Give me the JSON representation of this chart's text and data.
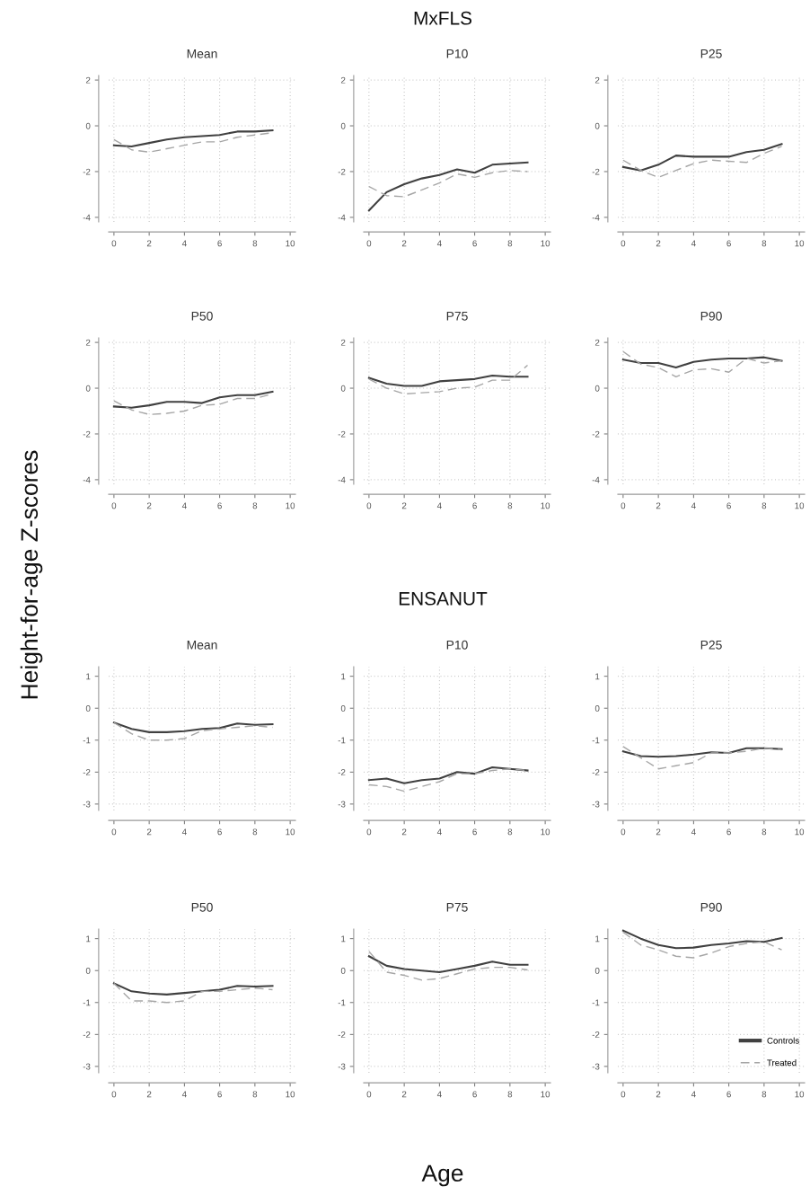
{
  "chart_data": [
    {
      "type": "line",
      "title": "Mean",
      "annotations": [
        "MxFLS",
        "Height-for-age Z-scores",
        "Age"
      ],
      "x": [
        0,
        1,
        2,
        3,
        4,
        5,
        6,
        7,
        8,
        9
      ],
      "xlim": [
        -0.3,
        10.3
      ],
      "xticks": [
        0,
        2,
        4,
        6,
        8,
        10
      ],
      "ylim": [
        -4.2,
        2.2
      ],
      "yticks": [
        -4,
        -2,
        0,
        2
      ],
      "grid": true,
      "series": [
        {
          "color": "#404040",
          "line_style": "solid",
          "values": [
            -0.85,
            -0.9,
            -0.75,
            -0.6,
            -0.5,
            -0.45,
            -0.4,
            -0.25,
            -0.25,
            -0.2
          ]
        },
        {
          "color": "#a6a6a6",
          "line_style": "dashed",
          "values": [
            -0.6,
            -1.05,
            -1.15,
            -1.0,
            -0.85,
            -0.7,
            -0.7,
            -0.5,
            -0.4,
            -0.3
          ]
        }
      ]
    },
    {
      "type": "line",
      "title": "P10",
      "x": [
        0,
        1,
        2,
        3,
        4,
        5,
        6,
        7,
        8,
        9
      ],
      "xlim": [
        -0.3,
        10.3
      ],
      "xticks": [
        0,
        2,
        4,
        6,
        8,
        10
      ],
      "ylim": [
        -4.2,
        2.2
      ],
      "yticks": [
        -4,
        -2,
        0,
        2
      ],
      "grid": true,
      "series": [
        {
          "color": "#404040",
          "line_style": "solid",
          "values": [
            -3.7,
            -2.9,
            -2.55,
            -2.3,
            -2.15,
            -1.9,
            -2.05,
            -1.7,
            -1.65,
            -1.6
          ]
        },
        {
          "color": "#a6a6a6",
          "line_style": "dashed",
          "values": [
            -2.65,
            -3.05,
            -3.1,
            -2.8,
            -2.5,
            -2.1,
            -2.25,
            -2.05,
            -1.95,
            -2.0
          ]
        }
      ]
    },
    {
      "type": "line",
      "title": "P25",
      "x": [
        0,
        1,
        2,
        3,
        4,
        5,
        6,
        7,
        8,
        9
      ],
      "xlim": [
        -0.3,
        10.3
      ],
      "xticks": [
        0,
        2,
        4,
        6,
        8,
        10
      ],
      "ylim": [
        -4.2,
        2.2
      ],
      "yticks": [
        -4,
        -2,
        0,
        2
      ],
      "grid": true,
      "series": [
        {
          "color": "#404040",
          "line_style": "solid",
          "values": [
            -1.8,
            -1.95,
            -1.7,
            -1.3,
            -1.35,
            -1.35,
            -1.35,
            -1.15,
            -1.05,
            -0.8
          ]
        },
        {
          "color": "#a6a6a6",
          "line_style": "dashed",
          "values": [
            -1.5,
            -1.95,
            -2.25,
            -1.95,
            -1.65,
            -1.5,
            -1.55,
            -1.6,
            -1.2,
            -0.9
          ]
        }
      ]
    },
    {
      "type": "line",
      "title": "P50",
      "x": [
        0,
        1,
        2,
        3,
        4,
        5,
        6,
        7,
        8,
        9
      ],
      "xlim": [
        -0.3,
        10.3
      ],
      "xticks": [
        0,
        2,
        4,
        6,
        8,
        10
      ],
      "ylim": [
        -4.2,
        2.2
      ],
      "yticks": [
        -4,
        -2,
        0,
        2
      ],
      "grid": true,
      "series": [
        {
          "color": "#404040",
          "line_style": "solid",
          "values": [
            -0.8,
            -0.85,
            -0.75,
            -0.6,
            -0.6,
            -0.65,
            -0.4,
            -0.3,
            -0.3,
            -0.15
          ]
        },
        {
          "color": "#a6a6a6",
          "line_style": "dashed",
          "values": [
            -0.55,
            -0.95,
            -1.15,
            -1.1,
            -1.0,
            -0.75,
            -0.7,
            -0.45,
            -0.45,
            -0.25
          ]
        }
      ]
    },
    {
      "type": "line",
      "title": "P75",
      "x": [
        0,
        1,
        2,
        3,
        4,
        5,
        6,
        7,
        8,
        9
      ],
      "xlim": [
        -0.3,
        10.3
      ],
      "xticks": [
        0,
        2,
        4,
        6,
        8,
        10
      ],
      "ylim": [
        -4.2,
        2.2
      ],
      "yticks": [
        -4,
        -2,
        0,
        2
      ],
      "grid": true,
      "series": [
        {
          "color": "#404040",
          "line_style": "solid",
          "values": [
            0.45,
            0.2,
            0.1,
            0.1,
            0.3,
            0.35,
            0.4,
            0.55,
            0.5,
            0.5
          ]
        },
        {
          "color": "#a6a6a6",
          "line_style": "dashed",
          "values": [
            0.4,
            0.0,
            -0.25,
            -0.2,
            -0.15,
            0.0,
            0.05,
            0.35,
            0.35,
            1.0
          ]
        }
      ]
    },
    {
      "type": "line",
      "title": "P90",
      "x": [
        0,
        1,
        2,
        3,
        4,
        5,
        6,
        7,
        8,
        9
      ],
      "xlim": [
        -0.3,
        10.3
      ],
      "xticks": [
        0,
        2,
        4,
        6,
        8,
        10
      ],
      "ylim": [
        -4.2,
        2.2
      ],
      "yticks": [
        -4,
        -2,
        0,
        2
      ],
      "grid": true,
      "series": [
        {
          "color": "#404040",
          "line_style": "solid",
          "values": [
            1.25,
            1.1,
            1.1,
            0.9,
            1.15,
            1.25,
            1.3,
            1.3,
            1.35,
            1.2
          ]
        },
        {
          "color": "#a6a6a6",
          "line_style": "dashed",
          "values": [
            1.6,
            1.05,
            0.9,
            0.5,
            0.8,
            0.85,
            0.7,
            1.3,
            1.1,
            1.2
          ]
        }
      ]
    },
    {
      "type": "line",
      "title": "Mean",
      "annotations": [
        "ENSANUT"
      ],
      "x": [
        0,
        1,
        2,
        3,
        4,
        5,
        6,
        7,
        8,
        9
      ],
      "xlim": [
        -0.3,
        10.3
      ],
      "xticks": [
        0,
        2,
        4,
        6,
        8,
        10
      ],
      "ylim": [
        -3.2,
        1.3
      ],
      "yticks": [
        -3,
        -2,
        -1,
        0,
        1
      ],
      "grid": true,
      "series": [
        {
          "color": "#404040",
          "line_style": "solid",
          "values": [
            -0.45,
            -0.65,
            -0.75,
            -0.75,
            -0.72,
            -0.65,
            -0.62,
            -0.48,
            -0.52,
            -0.5
          ]
        },
        {
          "color": "#a6a6a6",
          "line_style": "dashed",
          "values": [
            -0.45,
            -0.8,
            -1.0,
            -1.0,
            -0.95,
            -0.7,
            -0.65,
            -0.6,
            -0.55,
            -0.6
          ]
        }
      ]
    },
    {
      "type": "line",
      "title": "P10",
      "x": [
        0,
        1,
        2,
        3,
        4,
        5,
        6,
        7,
        8,
        9
      ],
      "xlim": [
        -0.3,
        10.3
      ],
      "xticks": [
        0,
        2,
        4,
        6,
        8,
        10
      ],
      "ylim": [
        -3.2,
        1.3
      ],
      "yticks": [
        -3,
        -2,
        -1,
        0,
        1
      ],
      "grid": true,
      "series": [
        {
          "color": "#404040",
          "line_style": "solid",
          "values": [
            -2.25,
            -2.2,
            -2.35,
            -2.25,
            -2.2,
            -2.0,
            -2.05,
            -1.85,
            -1.9,
            -1.95
          ]
        },
        {
          "color": "#a6a6a6",
          "line_style": "dashed",
          "values": [
            -2.4,
            -2.45,
            -2.6,
            -2.45,
            -2.3,
            -2.05,
            -2.05,
            -1.95,
            -1.9,
            -1.95
          ]
        }
      ]
    },
    {
      "type": "line",
      "title": "P25",
      "x": [
        0,
        1,
        2,
        3,
        4,
        5,
        6,
        7,
        8,
        9
      ],
      "xlim": [
        -0.3,
        10.3
      ],
      "xticks": [
        0,
        2,
        4,
        6,
        8,
        10
      ],
      "ylim": [
        -3.2,
        1.3
      ],
      "yticks": [
        -3,
        -2,
        -1,
        0,
        1
      ],
      "grid": true,
      "series": [
        {
          "color": "#404040",
          "line_style": "solid",
          "values": [
            -1.35,
            -1.5,
            -1.52,
            -1.5,
            -1.45,
            -1.38,
            -1.4,
            -1.25,
            -1.25,
            -1.28
          ]
        },
        {
          "color": "#a6a6a6",
          "line_style": "dashed",
          "values": [
            -1.2,
            -1.55,
            -1.9,
            -1.8,
            -1.7,
            -1.4,
            -1.4,
            -1.35,
            -1.25,
            -1.3
          ]
        }
      ]
    },
    {
      "type": "line",
      "title": "P50",
      "x": [
        0,
        1,
        2,
        3,
        4,
        5,
        6,
        7,
        8,
        9
      ],
      "xlim": [
        -0.3,
        10.3
      ],
      "xticks": [
        0,
        2,
        4,
        6,
        8,
        10
      ],
      "ylim": [
        -3.2,
        1.3
      ],
      "yticks": [
        -3,
        -2,
        -1,
        0,
        1
      ],
      "grid": true,
      "series": [
        {
          "color": "#404040",
          "line_style": "solid",
          "values": [
            -0.4,
            -0.65,
            -0.72,
            -0.75,
            -0.7,
            -0.65,
            -0.6,
            -0.48,
            -0.5,
            -0.48
          ]
        },
        {
          "color": "#a6a6a6",
          "line_style": "dashed",
          "values": [
            -0.4,
            -0.95,
            -0.95,
            -1.0,
            -0.95,
            -0.65,
            -0.65,
            -0.6,
            -0.55,
            -0.6
          ]
        }
      ]
    },
    {
      "type": "line",
      "title": "P75",
      "x": [
        0,
        1,
        2,
        3,
        4,
        5,
        6,
        7,
        8,
        9
      ],
      "xlim": [
        -0.3,
        10.3
      ],
      "xticks": [
        0,
        2,
        4,
        6,
        8,
        10
      ],
      "ylim": [
        -3.2,
        1.3
      ],
      "yticks": [
        -3,
        -2,
        -1,
        0,
        1
      ],
      "grid": true,
      "series": [
        {
          "color": "#404040",
          "line_style": "solid",
          "values": [
            0.45,
            0.15,
            0.05,
            0.0,
            -0.05,
            0.05,
            0.15,
            0.28,
            0.18,
            0.18
          ]
        },
        {
          "color": "#a6a6a6",
          "line_style": "dashed",
          "values": [
            0.6,
            -0.05,
            -0.15,
            -0.3,
            -0.25,
            -0.1,
            0.05,
            0.1,
            0.1,
            0.02
          ]
        }
      ]
    },
    {
      "type": "line",
      "title": "P90",
      "x": [
        0,
        1,
        2,
        3,
        4,
        5,
        6,
        7,
        8,
        9
      ],
      "xlim": [
        -0.3,
        10.3
      ],
      "xticks": [
        0,
        2,
        4,
        6,
        8,
        10
      ],
      "ylim": [
        -3.2,
        1.3
      ],
      "yticks": [
        -3,
        -2,
        -1,
        0,
        1
      ],
      "grid": true,
      "legend": "bottom right",
      "series": [
        {
          "name": "Controls",
          "color": "#404040",
          "line_style": "solid",
          "values": [
            1.25,
            1.0,
            0.8,
            0.7,
            0.72,
            0.8,
            0.85,
            0.92,
            0.9,
            1.02
          ]
        },
        {
          "name": "Treated",
          "color": "#a6a6a6",
          "line_style": "dashed",
          "values": [
            1.2,
            0.8,
            0.65,
            0.45,
            0.4,
            0.55,
            0.75,
            0.85,
            0.9,
            0.65
          ]
        }
      ]
    }
  ]
}
